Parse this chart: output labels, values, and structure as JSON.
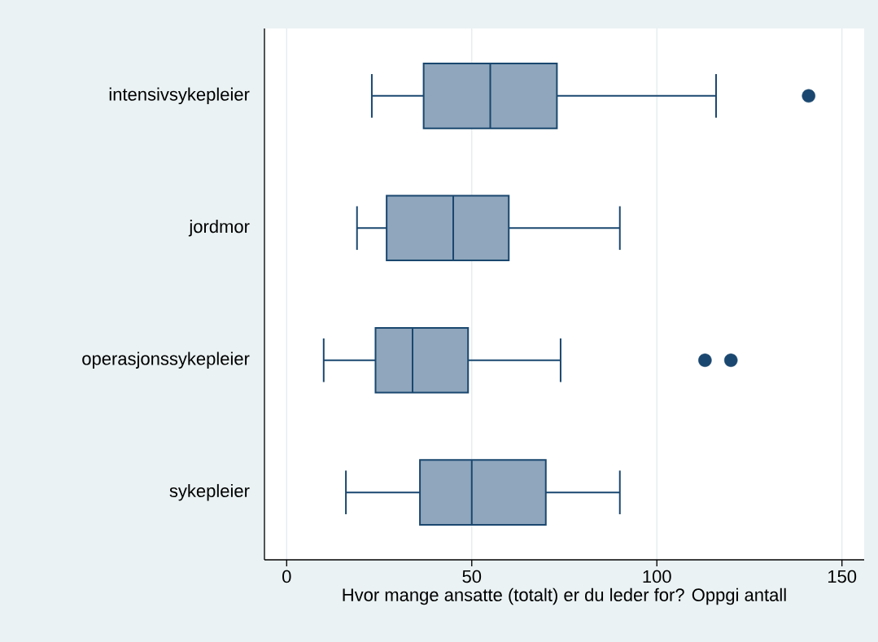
{
  "chart_data": {
    "type": "box",
    "orientation": "horizontal",
    "categories": [
      "intensivsykepleier",
      "jordmor",
      "operasjonssykepleier",
      "sykepleier"
    ],
    "series": [
      {
        "color": "#8fa6bc",
        "boxes": [
          {
            "low": 23,
            "q1": 37,
            "median": 55,
            "q3": 73,
            "high": 116,
            "outliers": [
              141
            ]
          },
          {
            "low": 19,
            "q1": 27,
            "median": 45,
            "q3": 60,
            "high": 90
          },
          {
            "low": 10,
            "q1": 24,
            "median": 34,
            "q3": 49,
            "high": 74,
            "outliers": [
              113,
              120
            ]
          },
          {
            "low": 16,
            "q1": 36,
            "median": 50,
            "q3": 70,
            "high": 90
          }
        ]
      }
    ],
    "xlabel": "Hvor mange ansatte (totalt) er du leder for? Oppgi antall",
    "xlim": [
      -6,
      156
    ],
    "xticks": [
      0,
      50,
      100,
      150
    ],
    "grid": "x"
  }
}
